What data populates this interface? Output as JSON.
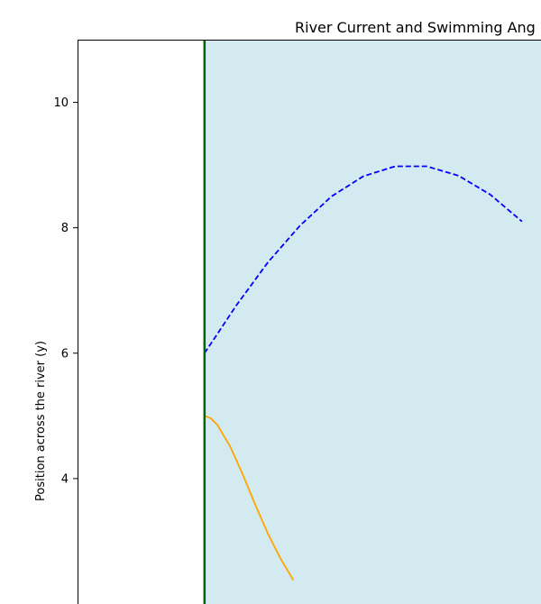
{
  "chart_data": {
    "type": "line",
    "title": "River Current and Swimming Ang",
    "xlabel": "",
    "ylabel": "Position across the river (y)",
    "ylim": [
      2.0,
      11.0
    ],
    "xlim": [
      -1.0,
      2.65
    ],
    "yticks": [
      4,
      6,
      8,
      10
    ],
    "grid": false,
    "river_region": {
      "x_start": 0.0,
      "color": "#d4eaf1"
    },
    "bank_line": {
      "x": 0.0,
      "color": "#006400"
    },
    "series": [
      {
        "style": "dashed",
        "color": "#0000ff",
        "points": [
          [
            0.0,
            6.0
          ],
          [
            0.25,
            6.76
          ],
          [
            0.5,
            7.45
          ],
          [
            0.75,
            8.03
          ],
          [
            1.0,
            8.5
          ],
          [
            1.25,
            8.82
          ],
          [
            1.5,
            8.98
          ],
          [
            1.75,
            8.98
          ],
          [
            2.0,
            8.83
          ],
          [
            2.25,
            8.53
          ],
          [
            2.5,
            8.1
          ]
        ]
      },
      {
        "style": "solid",
        "color": "#ffa500",
        "points": [
          [
            0.0,
            5.0
          ],
          [
            0.05,
            4.96
          ],
          [
            0.1,
            4.86
          ],
          [
            0.2,
            4.52
          ],
          [
            0.3,
            4.07
          ],
          [
            0.4,
            3.58
          ],
          [
            0.5,
            3.12
          ],
          [
            0.6,
            2.72
          ],
          [
            0.7,
            2.38
          ]
        ]
      }
    ]
  }
}
